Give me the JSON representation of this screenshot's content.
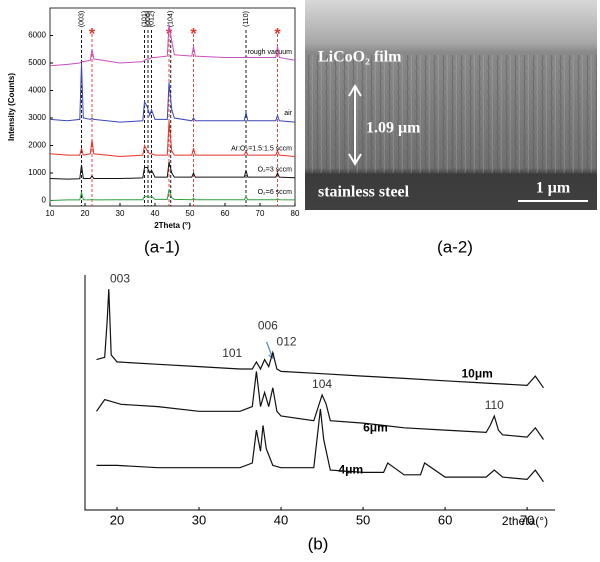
{
  "chart_data": [
    {
      "type": "line",
      "panel": "(a-1)",
      "xlabel": "2Theta (°)",
      "ylabel": "Intensity (Counts)",
      "xlim": [
        10,
        80
      ],
      "xticks": [
        10,
        20,
        30,
        40,
        50,
        60,
        70,
        80
      ],
      "ylim": [
        -200,
        7000
      ],
      "yticks": [
        0,
        1000,
        2000,
        3000,
        4000,
        5000,
        6000
      ],
      "x": [
        10,
        15,
        18.5,
        19,
        19.5,
        21.5,
        22,
        22.5,
        30,
        36.5,
        37,
        37.8,
        38.5,
        39,
        40,
        43.5,
        44,
        44.8,
        45.5,
        50.5,
        51,
        51.5,
        60,
        65.5,
        66,
        66.5,
        74.5,
        75,
        75.5,
        80
      ],
      "series": [
        {
          "name": "O₂=6 sccm",
          "color": "#2e9e3e",
          "values": [
            0,
            20,
            20,
            300,
            30,
            20,
            40,
            20,
            30,
            30,
            150,
            150,
            120,
            150,
            40,
            40,
            400,
            100,
            40,
            30,
            80,
            30,
            30,
            30,
            150,
            30,
            30,
            60,
            30,
            20
          ]
        },
        {
          "name": "O₂=3 sccm",
          "color": "#111111",
          "values": [
            800,
            780,
            790,
            1300,
            800,
            800,
            900,
            800,
            800,
            820,
            1200,
            1200,
            1000,
            1100,
            850,
            850,
            1400,
            1000,
            850,
            850,
            1000,
            850,
            850,
            850,
            1100,
            850,
            850,
            1000,
            850,
            830
          ]
        },
        {
          "name": "Ar:O₂=1.5:1.5 sccm",
          "color": "#e8332a",
          "values": [
            1700,
            1650,
            1650,
            1900,
            1650,
            1700,
            2200,
            1700,
            1600,
            1650,
            2000,
            1800,
            1700,
            1700,
            1650,
            1650,
            2900,
            1800,
            1650,
            1650,
            1900,
            1650,
            1650,
            1650,
            1800,
            1650,
            1650,
            1800,
            1650,
            1600
          ]
        },
        {
          "name": "air",
          "color": "#3a47b5",
          "values": [
            2950,
            2900,
            2950,
            5000,
            3000,
            2950,
            3000,
            2950,
            2850,
            2900,
            3600,
            3400,
            3100,
            3300,
            2950,
            2950,
            4300,
            3300,
            3000,
            2900,
            3000,
            2900,
            2900,
            2900,
            3200,
            2900,
            2900,
            3100,
            2900,
            2850
          ]
        },
        {
          "name": "rough vacuum",
          "color": "#c851c0",
          "values": [
            4900,
            4950,
            5000,
            5050,
            5050,
            5100,
            5500,
            5150,
            5000,
            5050,
            5100,
            5150,
            5150,
            5200,
            5200,
            5250,
            6400,
            5800,
            5300,
            5250,
            5600,
            5250,
            5200,
            5200,
            5250,
            5200,
            5200,
            5600,
            5200,
            5100
          ]
        }
      ],
      "reflections": [
        {
          "x": 19,
          "label": "(003)"
        },
        {
          "x": 37,
          "label": "(101)"
        },
        {
          "x": 38,
          "label": "(006)"
        },
        {
          "x": 39,
          "label": "(012)"
        },
        {
          "x": 44.5,
          "label": "(104)"
        },
        {
          "x": 66,
          "label": "(110)"
        }
      ],
      "impurity_marker": "*",
      "impurity_x": [
        22,
        44,
        51,
        75
      ]
    },
    {
      "type": "line",
      "panel": "(b)",
      "xlabel": "2theta(°)",
      "xlim": [
        16.1,
        73.4
      ],
      "xticks": [
        20,
        30,
        40,
        50,
        60,
        70
      ],
      "ylim": [
        0,
        100
      ],
      "series": [
        {
          "name": "10μm",
          "color": "#111111",
          "x": [
            17.5,
            18.5,
            18.8,
            19,
            19.3,
            20,
            25,
            30,
            35,
            36.5,
            37,
            37.5,
            38,
            38.5,
            39,
            39.5,
            40,
            45,
            50,
            55,
            60,
            65,
            70,
            71,
            72
          ],
          "values": [
            64,
            65,
            80,
            94,
            66,
            63,
            62,
            61,
            60,
            60,
            63,
            60,
            64,
            61,
            67,
            60,
            59,
            58,
            57,
            56,
            55,
            54,
            53,
            57,
            52
          ]
        },
        {
          "name": "6μm",
          "color": "#111111",
          "x": [
            17.5,
            18.5,
            19.5,
            20.5,
            25,
            30,
            35,
            36.5,
            37,
            37.5,
            38,
            38.5,
            39,
            39.5,
            40,
            44,
            45,
            45.5,
            46,
            50,
            55,
            60,
            65,
            65.5,
            66,
            66.5,
            67,
            70,
            71,
            72
          ],
          "values": [
            42,
            47,
            46,
            45,
            44,
            42,
            42,
            44,
            59,
            44,
            50,
            44,
            52,
            42,
            40,
            38,
            49,
            45,
            38,
            37,
            35,
            34,
            33,
            36,
            40,
            34,
            32,
            31,
            35,
            30
          ]
        },
        {
          "name": "4μm",
          "color": "#111111",
          "x": [
            17.5,
            20,
            25,
            30,
            35,
            36.5,
            37,
            37.5,
            37.8,
            38.2,
            39,
            40,
            44,
            44.8,
            45.2,
            46,
            50,
            52.5,
            53,
            55,
            57,
            57.5,
            60,
            65,
            66,
            67,
            70,
            71,
            72
          ],
          "values": [
            19,
            19,
            18,
            18,
            18,
            20,
            34,
            25,
            36,
            26,
            19,
            18,
            18,
            43,
            30,
            17,
            16,
            16,
            20,
            15,
            15,
            20,
            14,
            14,
            17,
            14,
            13,
            17,
            12
          ]
        }
      ],
      "peak_labels": [
        {
          "x": 19,
          "label": "003"
        },
        {
          "x": 36,
          "label": "101"
        },
        {
          "x": 38,
          "label": "006"
        },
        {
          "x": 39.5,
          "label": "012"
        },
        {
          "x": 45,
          "label": "104"
        },
        {
          "x": 66,
          "label": "110"
        }
      ]
    }
  ],
  "image": {
    "panel": "(a-2)",
    "film_label": "LiCoO₂ film",
    "thickness_label": "1.09 μm",
    "substrate_label": "stainless steel",
    "scale_label": "1 μm"
  }
}
